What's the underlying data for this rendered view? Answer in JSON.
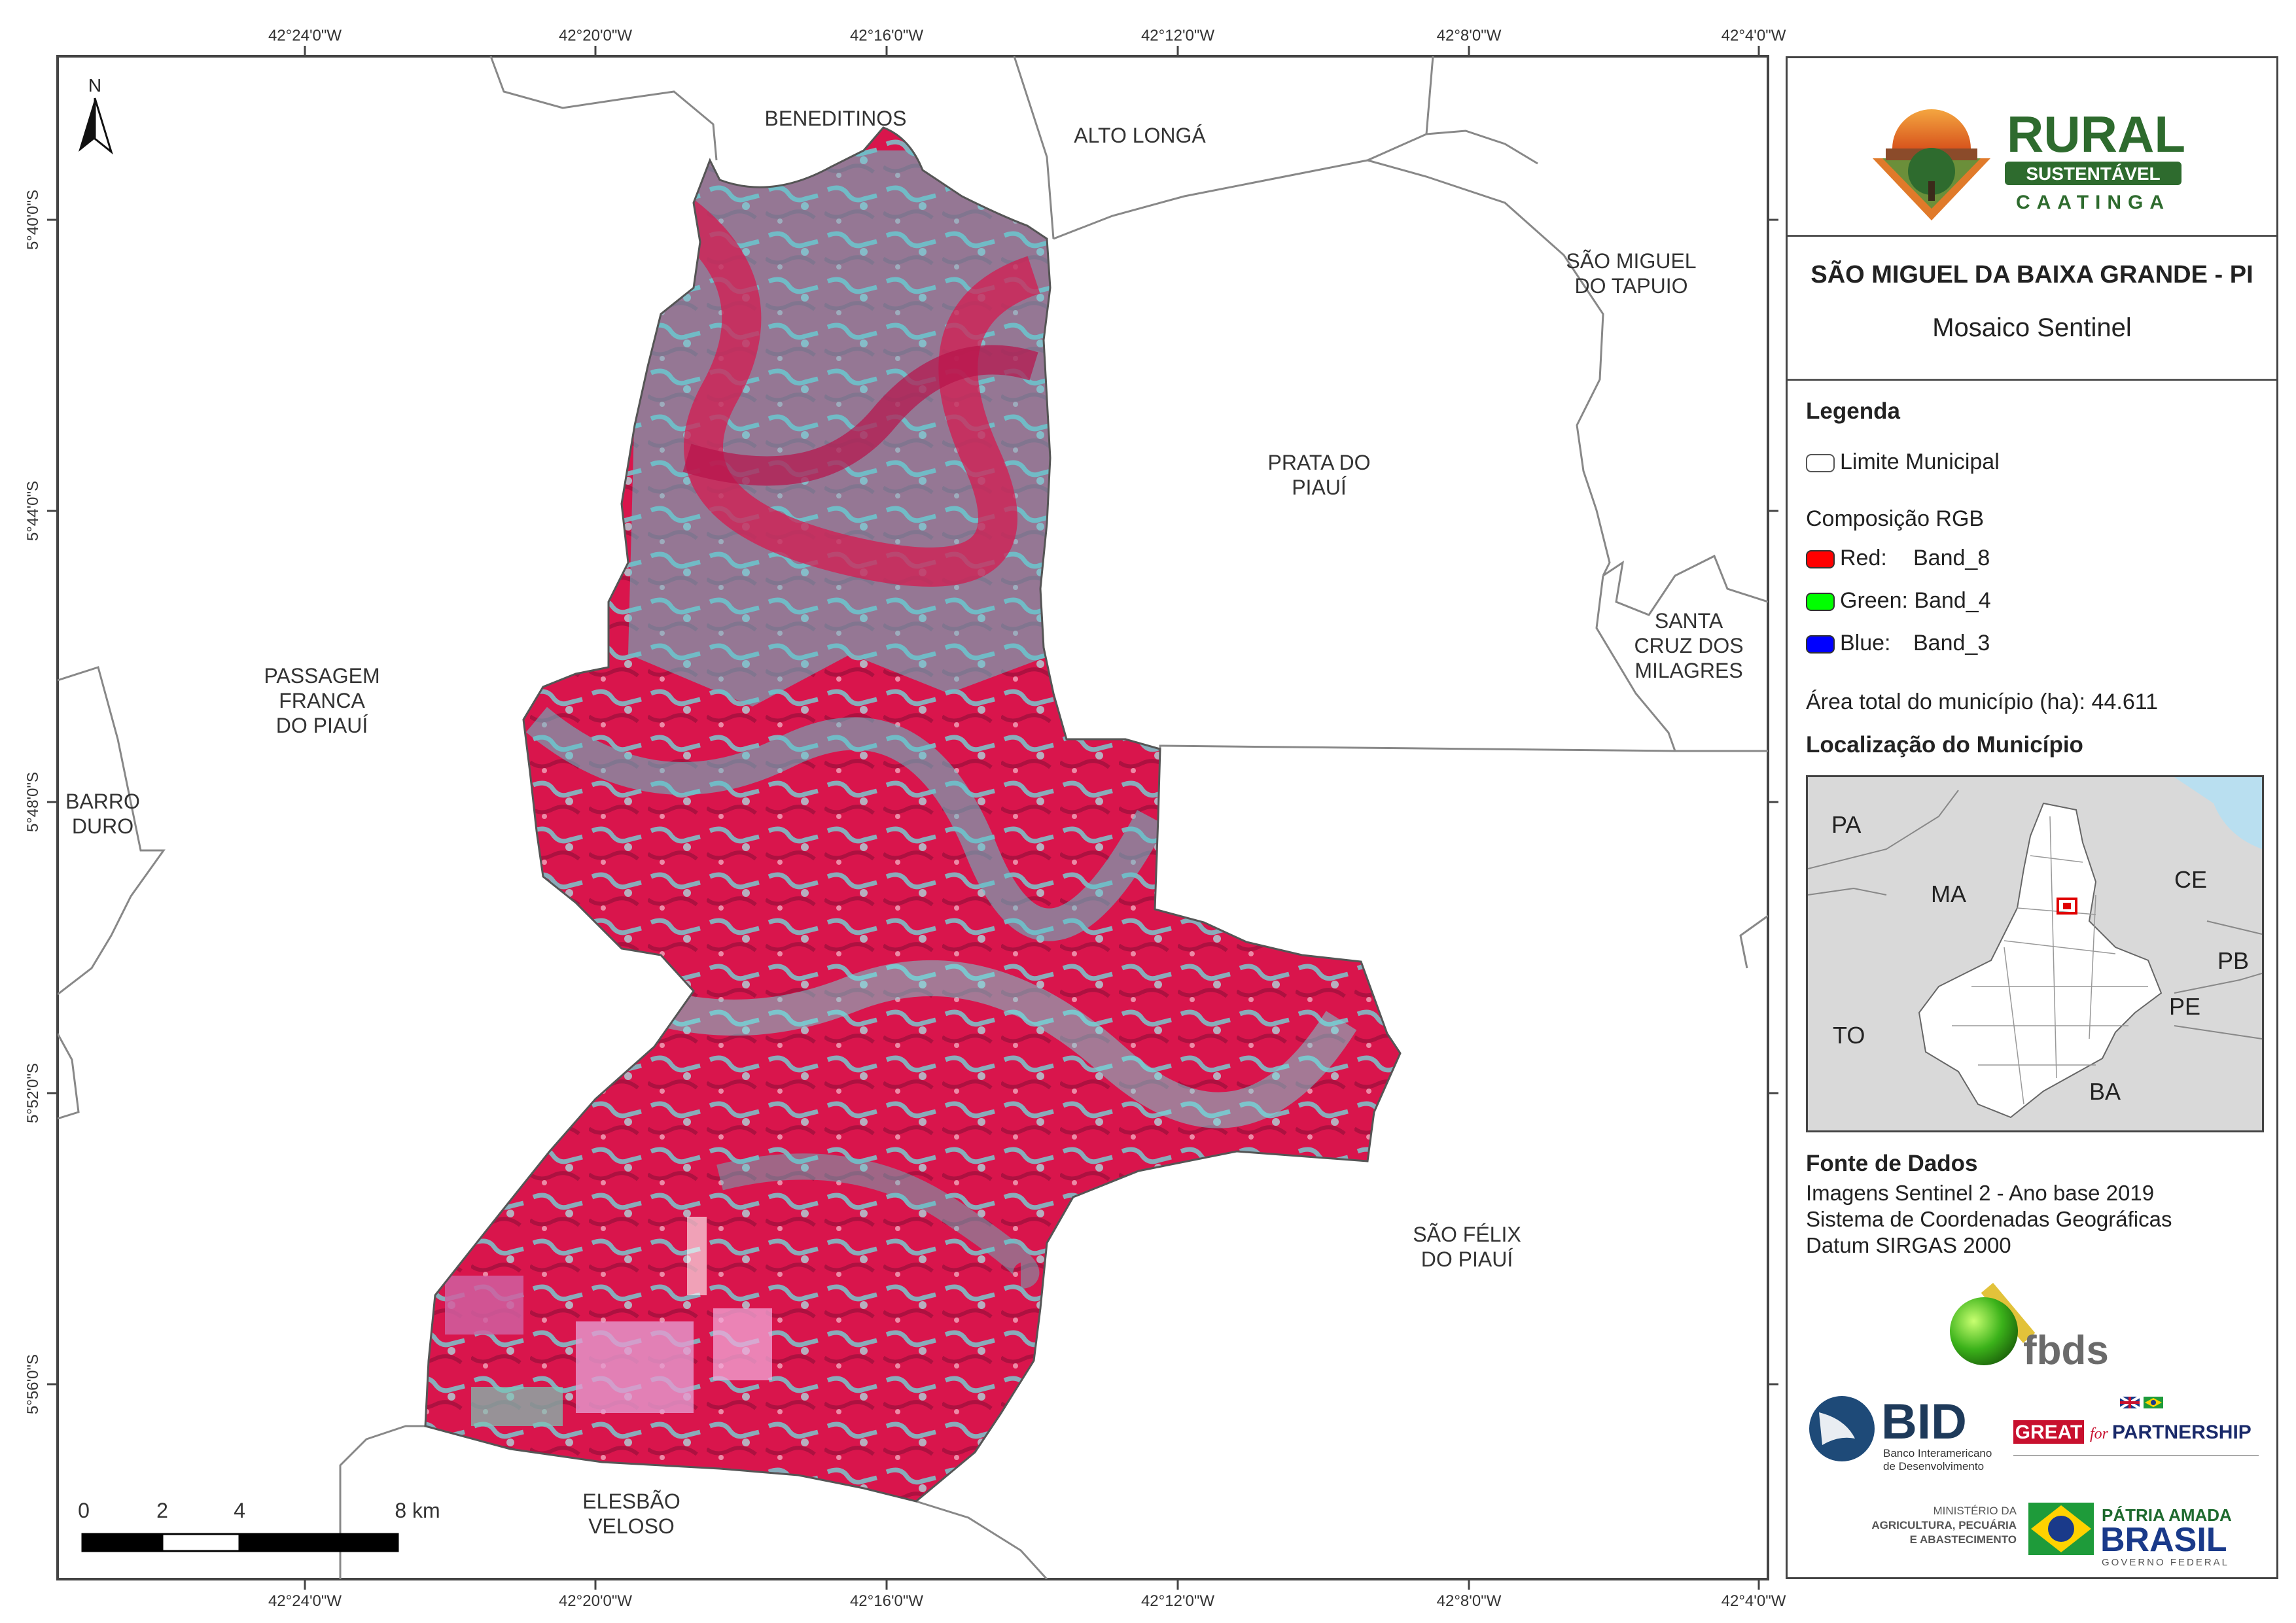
{
  "graticule": {
    "top_labels": [
      "42°24'0\"W",
      "42°20'0\"W",
      "42°16'0\"W",
      "42°12'0\"W",
      "42°8'0\"W",
      "42°4'0\"W"
    ],
    "bottom_labels": [
      "42°24'0\"W",
      "42°20'0\"W",
      "42°16'0\"W",
      "42°12'0\"W",
      "42°8'0\"W",
      "42°4'0\"W"
    ],
    "left_labels": [
      "5°40'0\"S",
      "5°44'0\"S",
      "5°48'0\"S",
      "5°52'0\"S",
      "5°56'0\"S"
    ]
  },
  "north_arrow": {
    "label": "N"
  },
  "municipalities": {
    "beneditinos": "BENEDITINOS",
    "alto_longa": "ALTO LONGÁ",
    "sao_miguel_tapuio_1": "SÃO MIGUEL",
    "sao_miguel_tapuio_2": "DO TAPUIO",
    "prata_1": "PRATA DO",
    "prata_2": "PIAUÍ",
    "santa_cruz_1": "SANTA",
    "santa_cruz_2": "CRUZ DOS",
    "santa_cruz_3": "MILAGRES",
    "passagem_1": "PASSAGEM",
    "passagem_2": "FRANCA",
    "passagem_3": "DO PIAUÍ",
    "barro_1": "BARRO",
    "barro_2": "DURO",
    "sao_felix_1": "SÃO FÉLIX",
    "sao_felix_2": "DO PIAUÍ",
    "elesbao_1": "ELESBÃO",
    "elesbao_2": "VELOSO"
  },
  "scale_bar": {
    "labels": [
      "0",
      "2",
      "4",
      "8 km"
    ]
  },
  "brand": {
    "line1": "RURAL",
    "line2": "SUSTENTÁVEL",
    "line3": "CAATINGA"
  },
  "panel": {
    "title": "SÃO MIGUEL DA BAIXA GRANDE - PI",
    "subtitle": "Mosaico Sentinel",
    "legend_heading": "Legenda",
    "limit_label": "Limite Municipal",
    "rgb_heading": "Composição RGB",
    "rgb": [
      {
        "name": "Red:",
        "band": "Band_8",
        "color": "#ff0000"
      },
      {
        "name": "Green:",
        "band": "Band_4",
        "color": "#00ff00"
      },
      {
        "name": "Blue:",
        "band": "Band_3",
        "color": "#0000ff"
      }
    ],
    "area_text": "Área total do município (ha):  44.611",
    "location_heading": "Localização do Município",
    "location_map_labels": {
      "pa": "PA",
      "ma": "MA",
      "ce": "CE",
      "pb": "PB",
      "pe": "PE",
      "to": "TO",
      "ba": "BA"
    },
    "source_heading": "Fonte de Dados",
    "sources": [
      "Imagens Sentinel 2 - Ano base 2019",
      "Sistema de Coordenadas Geográficas",
      "Datum SIRGAS 2000"
    ]
  },
  "logos": {
    "fbds": "fbds",
    "bid": "BID",
    "bid_sub1": "Banco Interamericano",
    "bid_sub2": "de Desenvolvimento",
    "great": "GREAT",
    "great_for": "for",
    "great_partnership": "PARTNERSHIP",
    "ministerio_1": "MINISTÉRIO DA",
    "ministerio_2": "AGRICULTURA, PECUÁRIA",
    "ministerio_3": "E ABASTECIMENTO",
    "patria": "PÁTRIA AMADA",
    "brasil": "BRASIL",
    "governo": "GOVERNO FEDERAL"
  },
  "colors": {
    "vegetation_red": "#e0144a",
    "bare_cyan": "#5fd2d2",
    "frame": "#444444",
    "brand_green": "#2e6b2e",
    "brand_orange": "#e07a2a"
  }
}
